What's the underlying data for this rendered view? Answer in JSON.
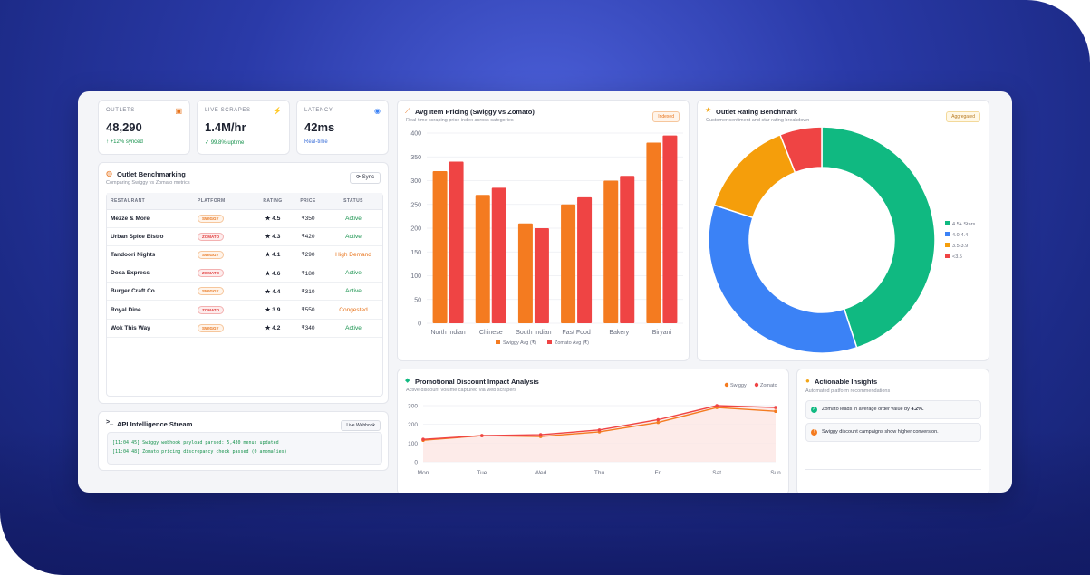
{
  "stats": [
    {
      "label": "OUTLETS",
      "icon": "store-icon",
      "value": "48,290",
      "sub": "↑ +12% synced"
    },
    {
      "label": "LIVE SCRAPES",
      "icon": "lightning-icon",
      "value": "1.4M/hr",
      "sub": "✓ 99.8% uptime"
    },
    {
      "label": "LATENCY",
      "icon": "gauge-icon",
      "value": "42ms",
      "sub": "Real-time"
    }
  ],
  "benchmark": {
    "title": "Outlet Benchmarking",
    "subtitle": "Comparing Swiggy vs Zomato metrics",
    "sync_label": "Sync",
    "columns": [
      "RESTAURANT",
      "PLATFORM",
      "RATING",
      "PRICE",
      "STATUS"
    ],
    "rows": [
      {
        "name": "Mezze & More",
        "platform": "SWIGGY",
        "rating": "4.5",
        "price": "₹350",
        "status": "Active"
      },
      {
        "name": "Urban Spice Bistro",
        "platform": "ZOMATO",
        "rating": "4.3",
        "price": "₹420",
        "status": "Active"
      },
      {
        "name": "Tandoori Nights",
        "platform": "SWIGGY",
        "rating": "4.1",
        "price": "₹290",
        "status": "High Demand"
      },
      {
        "name": "Dosa Express",
        "platform": "ZOMATO",
        "rating": "4.6",
        "price": "₹180",
        "status": "Active"
      },
      {
        "name": "Burger Craft Co.",
        "platform": "SWIGGY",
        "rating": "4.4",
        "price": "₹310",
        "status": "Active"
      },
      {
        "name": "Royal Dine",
        "platform": "ZOMATO",
        "rating": "3.9",
        "price": "₹550",
        "status": "Congested"
      },
      {
        "name": "Wok This Way",
        "platform": "SWIGGY",
        "rating": "4.2",
        "price": "₹340",
        "status": "Active"
      }
    ]
  },
  "stream": {
    "title": "API Intelligence Stream",
    "badge": "Live Webhook",
    "lines": [
      "[11:04:45] Swiggy webhook payload parsed: 5,430 menus updated",
      "[11:04:48] Zomato pricing discrepancy check passed (0 anomalies)"
    ]
  },
  "pricing": {
    "title": "Avg Item Pricing (Swiggy vs Zomato)",
    "subtitle": "Real-time scraping price index across categories",
    "badge": "Indexed"
  },
  "rating": {
    "title": "Outlet Rating Benchmark",
    "subtitle": "Customer sentiment and star rating breakdown",
    "badge": "Aggregated"
  },
  "promo": {
    "title": "Promotional Discount Impact Analysis",
    "subtitle": "Active discount volume captured via web scrapers"
  },
  "insights": {
    "title": "Actionable Insights",
    "subtitle": "Automated platform recommendations",
    "item1_prefix": "Zomato leads in average order value by ",
    "item1_value": "4.2%.",
    "item2": "Swiggy discount campaigns show higher conversion."
  },
  "colors": {
    "swiggy": "#f47b20",
    "zomato": "#ef4444",
    "green": "#10b981",
    "blue": "#3b82f6",
    "amber": "#f59e0b",
    "red": "#ef4444"
  },
  "chart_data": [
    {
      "type": "bar",
      "title": "Avg Item Pricing (Swiggy vs Zomato)",
      "categories": [
        "North Indian",
        "Chinese",
        "South Indian",
        "Fast Food",
        "Bakery",
        "Biryani"
      ],
      "series": [
        {
          "name": "Swiggy Avg (₹)",
          "values": [
            320,
            270,
            210,
            250,
            300,
            380
          ]
        },
        {
          "name": "Zomato Avg (₹)",
          "values": [
            340,
            285,
            200,
            265,
            310,
            395
          ]
        }
      ],
      "ylim": [
        0,
        400
      ],
      "yticks": [
        0,
        50,
        100,
        150,
        200,
        250,
        300,
        350,
        400
      ],
      "grid": true,
      "legend": "bottom"
    },
    {
      "type": "pie",
      "title": "Outlet Rating Benchmark",
      "labels": [
        "4.5+ Stars",
        "4.0-4.4",
        "3.5-3.9",
        "<3.5"
      ],
      "values": [
        45,
        35,
        14,
        6
      ],
      "legend": "right"
    },
    {
      "type": "line",
      "title": "Promotional Discount Impact Analysis",
      "x": [
        "Mon",
        "Tue",
        "Wed",
        "Thu",
        "Fri",
        "Sat",
        "Sun"
      ],
      "series": [
        {
          "name": "Swiggy",
          "values": [
            115,
            140,
            135,
            160,
            210,
            290,
            270
          ]
        },
        {
          "name": "Zomato",
          "values": [
            120,
            140,
            145,
            170,
            225,
            300,
            290
          ]
        }
      ],
      "ylim": [
        0,
        300
      ],
      "yticks": [
        0,
        100,
        200,
        300
      ],
      "legend": "top-right"
    }
  ]
}
